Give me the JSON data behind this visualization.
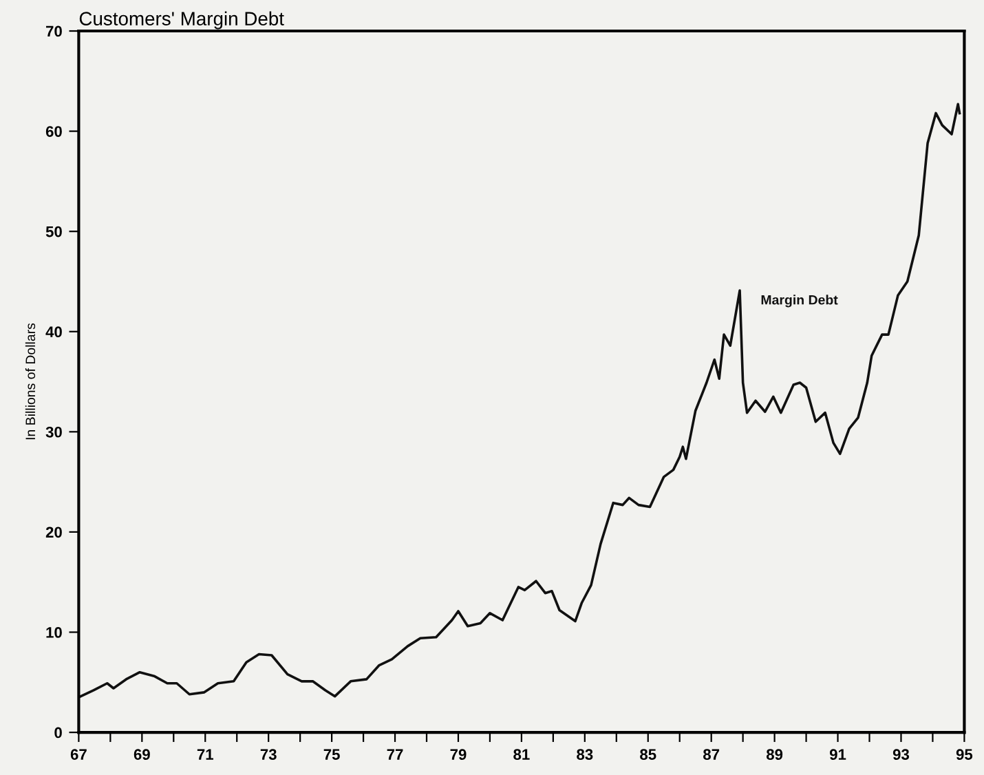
{
  "chart_data": {
    "type": "line",
    "title": "Customers' Margin Debt",
    "ylabel": "In Billions of Dollars",
    "xlim": [
      67,
      95
    ],
    "ylim": [
      0,
      70
    ],
    "xticks": [
      67,
      {
        "value": 68,
        "label": null
      },
      69,
      {
        "value": 70,
        "label": null
      },
      71,
      {
        "value": 72,
        "label": null
      },
      73,
      {
        "value": 74,
        "label": null
      },
      75,
      {
        "value": 76,
        "label": null
      },
      77,
      {
        "value": 78,
        "label": null
      },
      79,
      {
        "value": 80,
        "label": null
      },
      81,
      {
        "value": 82,
        "label": null
      },
      83,
      {
        "value": 84,
        "label": null
      },
      85,
      {
        "value": 86,
        "label": null
      },
      87,
      {
        "value": 88,
        "label": null
      },
      89,
      {
        "value": 90,
        "label": null
      },
      91,
      {
        "value": 92,
        "label": null
      },
      93,
      {
        "value": 94,
        "label": null
      },
      95
    ],
    "yticks": [
      0,
      10,
      20,
      30,
      40,
      50,
      60,
      70
    ],
    "grid": false,
    "legend": false,
    "marker": "none",
    "line_style": "solid",
    "series": [
      {
        "name": "Margin Debt",
        "color": "#111111",
        "x": [
          67.0,
          67.47,
          67.9,
          68.1,
          68.5,
          68.93,
          69.4,
          69.8,
          70.1,
          70.5,
          70.97,
          71.4,
          71.9,
          72.3,
          72.7,
          73.1,
          73.6,
          74.05,
          74.4,
          74.8,
          75.1,
          75.6,
          76.1,
          76.5,
          76.9,
          77.4,
          77.8,
          78.3,
          78.8,
          79.0,
          79.3,
          79.7,
          80.0,
          80.4,
          80.9,
          81.1,
          81.46,
          81.75,
          81.96,
          82.2,
          82.7,
          82.9,
          83.2,
          83.5,
          83.9,
          84.2,
          84.4,
          84.7,
          85.06,
          85.5,
          85.8,
          86.0,
          86.1,
          86.2,
          86.5,
          86.85,
          87.1,
          87.25,
          87.4,
          87.6,
          87.9,
          88.0,
          88.13,
          88.4,
          88.7,
          88.96,
          89.2,
          89.6,
          89.8,
          90.0,
          90.3,
          90.6,
          90.86,
          91.07,
          91.36,
          91.64,
          91.93,
          92.07,
          92.4,
          92.6,
          92.9,
          93.2,
          93.56,
          93.84,
          94.1,
          94.3,
          94.6,
          94.8,
          94.85
        ],
        "values": [
          3.5,
          4.2,
          4.9,
          4.4,
          5.3,
          6.0,
          5.6,
          4.9,
          4.9,
          3.8,
          4.0,
          4.9,
          5.1,
          7.0,
          7.8,
          7.7,
          5.8,
          5.1,
          5.1,
          4.2,
          3.6,
          5.1,
          5.3,
          6.7,
          7.3,
          8.6,
          9.4,
          9.5,
          11.2,
          12.1,
          10.6,
          10.9,
          11.9,
          11.2,
          14.5,
          14.2,
          15.1,
          13.9,
          14.1,
          12.2,
          11.1,
          12.9,
          14.7,
          18.8,
          22.9,
          22.7,
          23.4,
          22.7,
          22.5,
          25.5,
          26.2,
          27.5,
          28.5,
          27.3,
          32.1,
          34.9,
          37.2,
          35.3,
          39.7,
          38.6,
          44.1,
          34.9,
          31.9,
          33.1,
          32.0,
          33.5,
          31.9,
          34.7,
          34.9,
          34.4,
          31.0,
          31.9,
          28.9,
          27.8,
          30.3,
          31.4,
          34.9,
          37.6,
          39.7,
          39.7,
          43.6,
          45.0,
          49.6,
          58.8,
          61.8,
          60.6,
          59.7,
          62.7,
          61.8
        ]
      }
    ]
  }
}
